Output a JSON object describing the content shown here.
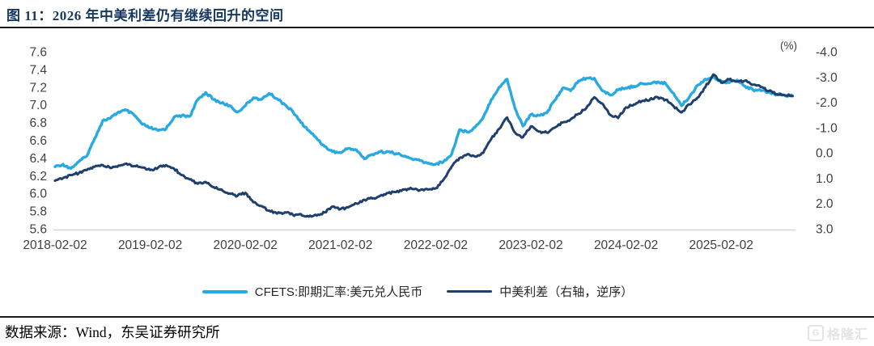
{
  "page": {
    "title": "图 11：2026 年中美利差仍有继续回升的空间",
    "source_note": "数据来源：Wind，东吴证券研究所",
    "watermark": "格隆汇",
    "watermark_letter": "G"
  },
  "chart_data": {
    "type": "line",
    "title": "图 11：2026 年中美利差仍有继续回升的空间",
    "unit_label": "(%)",
    "grid": "bottom-baseline-only",
    "legend_position": "bottom",
    "x_tick_labels": [
      "2018-02-02",
      "2019-02-02",
      "2020-02-02",
      "2021-02-02",
      "2022-02-02",
      "2023-02-02",
      "2024-02-02",
      "2025-02-02"
    ],
    "left_axis": {
      "top": 7.6,
      "bottom": 5.6,
      "ticks": [
        "7.6",
        "7.4",
        "7.2",
        "7.0",
        "6.8",
        "6.6",
        "6.4",
        "6.2",
        "6.0",
        "5.8",
        "5.6"
      ]
    },
    "right_axis": {
      "top": -4.0,
      "bottom": 3.0,
      "reversed": true,
      "unit": "%",
      "ticks": [
        "-4.0",
        "-3.0",
        "-2.0",
        "-1.0",
        "0.0",
        "1.0",
        "2.0",
        "3.0"
      ]
    },
    "start_month": "2018-02",
    "end_month": "2025-11",
    "frequency": "monthly",
    "series": [
      {
        "name": "CFETS:即期汇率:美元兑人民币",
        "axis": "left",
        "color": "#29a9e2",
        "monthly_values": [
          6.3,
          6.33,
          6.28,
          6.36,
          6.42,
          6.62,
          6.82,
          6.85,
          6.92,
          6.94,
          6.88,
          6.78,
          6.74,
          6.71,
          6.73,
          6.86,
          6.88,
          6.87,
          7.06,
          7.14,
          7.06,
          7.02,
          6.99,
          6.92,
          6.99,
          7.08,
          7.06,
          7.13,
          7.07,
          7.0,
          6.92,
          6.8,
          6.71,
          6.62,
          6.53,
          6.47,
          6.46,
          6.51,
          6.49,
          6.39,
          6.44,
          6.47,
          6.47,
          6.45,
          6.42,
          6.39,
          6.37,
          6.34,
          6.33,
          6.36,
          6.44,
          6.72,
          6.69,
          6.75,
          6.86,
          7.06,
          7.2,
          7.29,
          6.96,
          6.76,
          6.89,
          6.88,
          6.91,
          7.05,
          7.19,
          7.16,
          7.27,
          7.3,
          7.3,
          7.16,
          7.11,
          7.17,
          7.19,
          7.21,
          7.24,
          7.24,
          7.26,
          7.24,
          7.13,
          6.99,
          7.09,
          7.22,
          7.29,
          7.31,
          7.27,
          7.25,
          7.28,
          7.21,
          7.17,
          7.16,
          7.14,
          7.12,
          7.11,
          7.1
        ]
      },
      {
        "name": "中美利差（右轴，逆序）",
        "axis": "right",
        "color": "#1f3f6d",
        "monthly_values": [
          1.1,
          1.0,
          0.88,
          0.8,
          0.68,
          0.55,
          0.48,
          0.6,
          0.5,
          0.42,
          0.52,
          0.58,
          0.68,
          0.58,
          0.48,
          0.62,
          0.88,
          1.05,
          1.22,
          1.15,
          1.35,
          1.45,
          1.6,
          1.7,
          1.58,
          1.95,
          2.1,
          2.28,
          2.4,
          2.35,
          2.45,
          2.42,
          2.52,
          2.48,
          2.35,
          2.12,
          2.22,
          2.15,
          2.0,
          1.85,
          1.8,
          1.7,
          1.58,
          1.55,
          1.45,
          1.42,
          1.48,
          1.45,
          1.4,
          1.05,
          0.55,
          0.2,
          0.05,
          0.15,
          0.0,
          -0.55,
          -0.95,
          -1.4,
          -0.8,
          -0.62,
          -1.05,
          -0.85,
          -0.8,
          -1.0,
          -1.2,
          -1.32,
          -1.55,
          -1.78,
          -2.2,
          -1.95,
          -1.5,
          -1.38,
          -1.8,
          -1.92,
          -2.05,
          -2.1,
          -2.2,
          -2.1,
          -1.85,
          -1.6,
          -1.92,
          -2.18,
          -2.6,
          -3.1,
          -2.78,
          -2.9,
          -2.82,
          -2.86,
          -2.7,
          -2.6,
          -2.45,
          -2.32,
          -2.28,
          -2.25
        ]
      }
    ]
  }
}
